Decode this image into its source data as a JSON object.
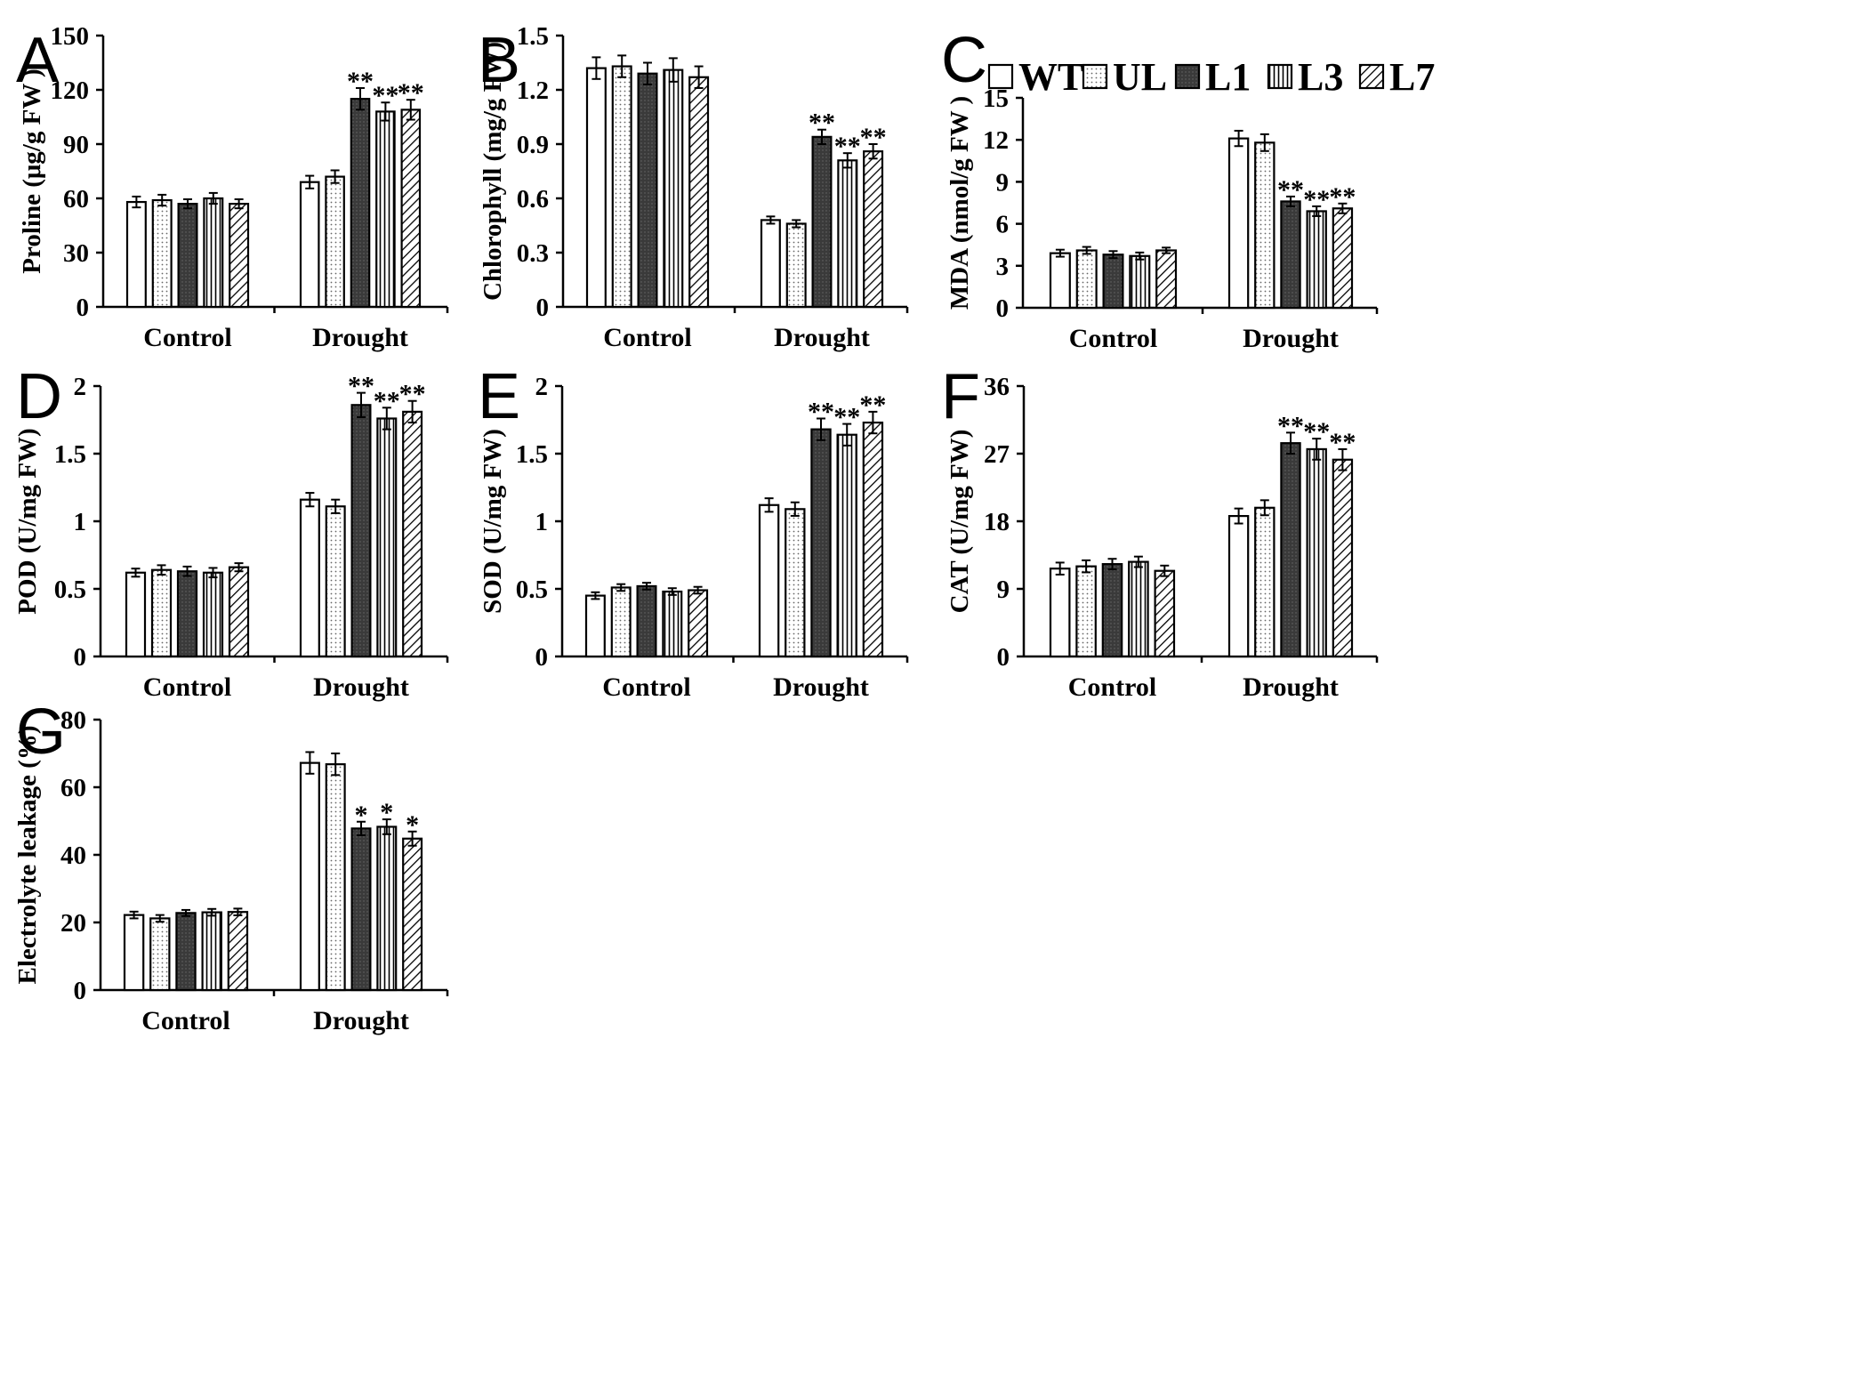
{
  "legend": {
    "entries": [
      {
        "name": "WT",
        "pattern": "white"
      },
      {
        "name": "UL",
        "pattern": "dots"
      },
      {
        "name": "L1",
        "pattern": "dark"
      },
      {
        "name": "L3",
        "pattern": "vlines"
      },
      {
        "name": "L7",
        "pattern": "diag"
      }
    ]
  },
  "colors": {
    "dark_fill": "#3a3a3a",
    "line": "#000000",
    "background": "#ffffff"
  },
  "chart_data": [
    {
      "panel": "A",
      "type": "bar",
      "ylabel": "Proline (μg/g FW )",
      "ylim": [
        0,
        150
      ],
      "yticks": [
        "0",
        "30",
        "60",
        "90",
        "120",
        "150"
      ],
      "categories": [
        "Control",
        "Drought"
      ],
      "series": [
        {
          "name": "WT",
          "values": [
            58,
            69
          ],
          "errors": [
            3,
            3.5
          ],
          "sig": [
            "",
            ""
          ]
        },
        {
          "name": "UL",
          "values": [
            59,
            72
          ],
          "errors": [
            3,
            3.5
          ],
          "sig": [
            "",
            ""
          ]
        },
        {
          "name": "L1",
          "values": [
            57,
            115
          ],
          "errors": [
            2.5,
            6
          ],
          "sig": [
            "",
            "**"
          ]
        },
        {
          "name": "L3",
          "values": [
            60,
            108
          ],
          "errors": [
            3,
            5
          ],
          "sig": [
            "",
            "**"
          ]
        },
        {
          "name": "L7",
          "values": [
            57,
            109
          ],
          "errors": [
            2.5,
            5.5
          ],
          "sig": [
            "",
            "**"
          ]
        }
      ]
    },
    {
      "panel": "B",
      "type": "bar",
      "ylabel": "Chlorophyll (mg/g FW)",
      "ylim": [
        0,
        1.5
      ],
      "yticks": [
        "0",
        "0.3",
        "0.6",
        "0.9",
        "1.2",
        "1.5"
      ],
      "categories": [
        "Control",
        "Drought"
      ],
      "series": [
        {
          "name": "WT",
          "values": [
            1.32,
            0.48
          ],
          "errors": [
            0.06,
            0.02
          ],
          "sig": [
            "",
            ""
          ]
        },
        {
          "name": "UL",
          "values": [
            1.33,
            0.46
          ],
          "errors": [
            0.06,
            0.02
          ],
          "sig": [
            "",
            ""
          ]
        },
        {
          "name": "L1",
          "values": [
            1.29,
            0.94
          ],
          "errors": [
            0.06,
            0.04
          ],
          "sig": [
            "",
            "**"
          ]
        },
        {
          "name": "L3",
          "values": [
            1.31,
            0.81
          ],
          "errors": [
            0.065,
            0.04
          ],
          "sig": [
            "",
            "**"
          ]
        },
        {
          "name": "L7",
          "values": [
            1.27,
            0.86
          ],
          "errors": [
            0.06,
            0.04
          ],
          "sig": [
            "",
            "**"
          ]
        }
      ]
    },
    {
      "panel": "C",
      "type": "bar",
      "ylabel": "MDA (nmol/g FW )",
      "ylim": [
        0,
        15
      ],
      "yticks": [
        "0",
        "3",
        "6",
        "9",
        "12",
        "15"
      ],
      "categories": [
        "Control",
        "Drought"
      ],
      "series": [
        {
          "name": "WT",
          "values": [
            3.9,
            12.1
          ],
          "errors": [
            0.25,
            0.55
          ],
          "sig": [
            "",
            ""
          ]
        },
        {
          "name": "UL",
          "values": [
            4.1,
            11.8
          ],
          "errors": [
            0.25,
            0.6
          ],
          "sig": [
            "",
            ""
          ]
        },
        {
          "name": "L1",
          "values": [
            3.8,
            7.6
          ],
          "errors": [
            0.25,
            0.35
          ],
          "sig": [
            "",
            "**"
          ]
        },
        {
          "name": "L3",
          "values": [
            3.7,
            6.9
          ],
          "errors": [
            0.25,
            0.35
          ],
          "sig": [
            "",
            "**"
          ]
        },
        {
          "name": "L7",
          "values": [
            4.1,
            7.1
          ],
          "errors": [
            0.2,
            0.35
          ],
          "sig": [
            "",
            "**"
          ]
        }
      ]
    },
    {
      "panel": "D",
      "type": "bar",
      "ylabel": "POD (U/mg FW)",
      "ylim": [
        0,
        2
      ],
      "yticks": [
        "0",
        "0.5",
        "1",
        "1.5",
        "2"
      ],
      "categories": [
        "Control",
        "Drought"
      ],
      "series": [
        {
          "name": "WT",
          "values": [
            0.62,
            1.16
          ],
          "errors": [
            0.03,
            0.05
          ],
          "sig": [
            "",
            ""
          ]
        },
        {
          "name": "UL",
          "values": [
            0.64,
            1.11
          ],
          "errors": [
            0.035,
            0.05
          ],
          "sig": [
            "",
            ""
          ]
        },
        {
          "name": "L1",
          "values": [
            0.63,
            1.86
          ],
          "errors": [
            0.035,
            0.09
          ],
          "sig": [
            "",
            "**"
          ]
        },
        {
          "name": "L3",
          "values": [
            0.62,
            1.76
          ],
          "errors": [
            0.035,
            0.08
          ],
          "sig": [
            "",
            "**"
          ]
        },
        {
          "name": "L7",
          "values": [
            0.66,
            1.81
          ],
          "errors": [
            0.03,
            0.08
          ],
          "sig": [
            "",
            "**"
          ]
        }
      ]
    },
    {
      "panel": "E",
      "type": "bar",
      "ylabel": "SOD (U/mg FW)",
      "ylim": [
        0,
        2
      ],
      "yticks": [
        "0",
        "0.5",
        "1",
        "1.5",
        "2"
      ],
      "categories": [
        "Control",
        "Drought"
      ],
      "series": [
        {
          "name": "WT",
          "values": [
            0.45,
            1.12
          ],
          "errors": [
            0.025,
            0.05
          ],
          "sig": [
            "",
            ""
          ]
        },
        {
          "name": "UL",
          "values": [
            0.51,
            1.09
          ],
          "errors": [
            0.025,
            0.05
          ],
          "sig": [
            "",
            ""
          ]
        },
        {
          "name": "L1",
          "values": [
            0.52,
            1.68
          ],
          "errors": [
            0.025,
            0.08
          ],
          "sig": [
            "",
            "**"
          ]
        },
        {
          "name": "L3",
          "values": [
            0.48,
            1.64
          ],
          "errors": [
            0.025,
            0.08
          ],
          "sig": [
            "",
            "**"
          ]
        },
        {
          "name": "L7",
          "values": [
            0.49,
            1.73
          ],
          "errors": [
            0.025,
            0.08
          ],
          "sig": [
            "",
            "**"
          ]
        }
      ]
    },
    {
      "panel": "F",
      "type": "bar",
      "ylabel": "CAT (U/mg FW)",
      "ylim": [
        0,
        36
      ],
      "yticks": [
        "0",
        "9",
        "18",
        "27",
        "36"
      ],
      "categories": [
        "Control",
        "Drought"
      ],
      "series": [
        {
          "name": "WT",
          "values": [
            11.7,
            18.7
          ],
          "errors": [
            0.8,
            1.0
          ],
          "sig": [
            "",
            ""
          ]
        },
        {
          "name": "UL",
          "values": [
            12.0,
            19.8
          ],
          "errors": [
            0.8,
            1.0
          ],
          "sig": [
            "",
            ""
          ]
        },
        {
          "name": "L1",
          "values": [
            12.3,
            28.4
          ],
          "errors": [
            0.7,
            1.4
          ],
          "sig": [
            "",
            "**"
          ]
        },
        {
          "name": "L3",
          "values": [
            12.6,
            27.6
          ],
          "errors": [
            0.7,
            1.4
          ],
          "sig": [
            "",
            "**"
          ]
        },
        {
          "name": "L7",
          "values": [
            11.4,
            26.2
          ],
          "errors": [
            0.7,
            1.4
          ],
          "sig": [
            "",
            "**"
          ]
        }
      ]
    },
    {
      "panel": "G",
      "type": "bar",
      "ylabel": "Electrolyte leakage (%)",
      "ylim": [
        0,
        80
      ],
      "yticks": [
        "0",
        "20",
        "40",
        "60",
        "80"
      ],
      "categories": [
        "Control",
        "Drought"
      ],
      "series": [
        {
          "name": "WT",
          "values": [
            22.2,
            67.2
          ],
          "errors": [
            1.0,
            3.2
          ],
          "sig": [
            "",
            ""
          ]
        },
        {
          "name": "UL",
          "values": [
            21.2,
            66.8
          ],
          "errors": [
            1.0,
            3.2
          ],
          "sig": [
            "",
            ""
          ]
        },
        {
          "name": "L1",
          "values": [
            22.8,
            47.8
          ],
          "errors": [
            0.9,
            2.0
          ],
          "sig": [
            "",
            "*"
          ]
        },
        {
          "name": "L3",
          "values": [
            23.0,
            48.3
          ],
          "errors": [
            1.0,
            2.2
          ],
          "sig": [
            "",
            "*"
          ]
        },
        {
          "name": "L7",
          "values": [
            23.1,
            44.8
          ],
          "errors": [
            1.0,
            2.1
          ],
          "sig": [
            "",
            "*"
          ]
        }
      ]
    }
  ]
}
